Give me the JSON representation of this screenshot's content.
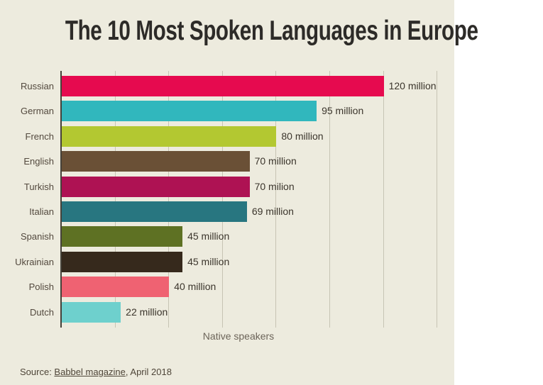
{
  "page": {
    "background_color": "#edebde",
    "source": {
      "prefix": "Source: ",
      "link_text": "Babbel magazine",
      "suffix": ", April 2018"
    }
  },
  "chart_data": {
    "type": "bar",
    "orientation": "horizontal",
    "title": "The 10 Most Spoken Languages in Europe",
    "xlabel": "Native speakers",
    "ylabel": "",
    "unit": "million native speakers",
    "xlim": [
      0,
      140
    ],
    "gridline_interval_million": 20,
    "grid": true,
    "legend": "none",
    "categories": [
      "Russian",
      "German",
      "French",
      "English",
      "Turkish",
      "Italian",
      "Spanish",
      "Ukrainian",
      "Polish",
      "Dutch"
    ],
    "values": [
      120,
      95,
      80,
      70,
      70,
      69,
      45,
      45,
      40,
      22
    ],
    "value_labels": [
      "120 million",
      "95 million",
      "80 million",
      "70 million",
      "70 milion",
      "69 million",
      "45 million",
      "45 million",
      "40 million",
      "22 million"
    ],
    "bar_colors": [
      "#e60a4f",
      "#31b7bd",
      "#b3c831",
      "#6a5036",
      "#ae1253",
      "#287680",
      "#5e7123",
      "#36291c",
      "#ef6272",
      "#6ed0cd"
    ],
    "axis_color": "#454139",
    "gridline_color": "#c7c4b4",
    "source_text": "Source: Babbel magazine, April 2018"
  }
}
